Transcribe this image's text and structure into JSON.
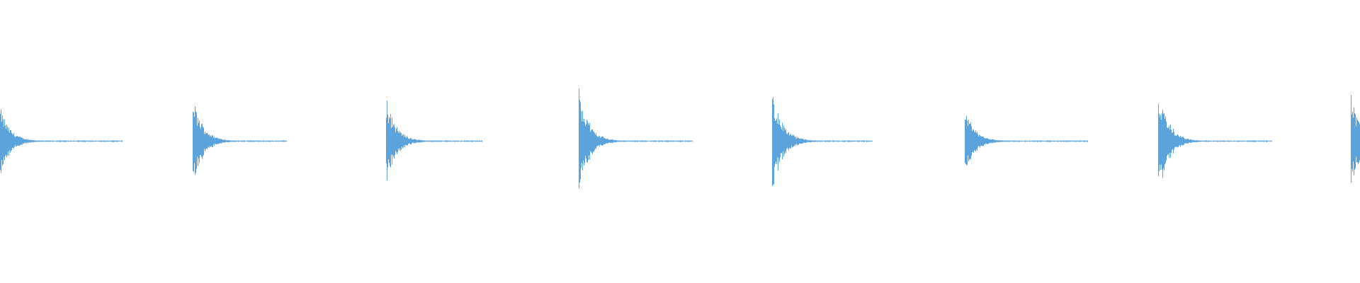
{
  "waveform": {
    "color": "#5ba3dd"
  }
}
